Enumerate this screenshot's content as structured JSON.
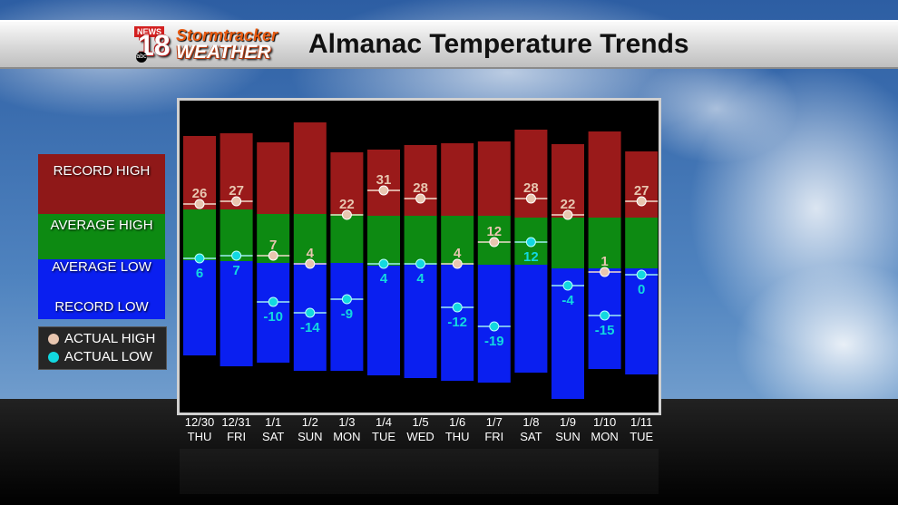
{
  "title": "Almanac Temperature Trends",
  "logo": {
    "news": "NEWS",
    "number": "18",
    "stormtracker": "Stormtracker",
    "weather": "WEATHER",
    "abc": "abc"
  },
  "legend": {
    "record_high": "RECORD HIGH",
    "average_high": "AVERAGE HIGH",
    "average_low": "AVERAGE LOW",
    "record_low": "RECORD LOW",
    "actual_high": "ACTUAL HIGH",
    "actual_low": "ACTUAL LOW"
  },
  "colors": {
    "record_high": "#9a1a1a",
    "average": "#0d8a12",
    "record_low": "#0a1ff0",
    "actual_high": "#e8c6b0",
    "actual_low": "#12d8e0",
    "frame": "#d0d0d0"
  },
  "chart_data": {
    "type": "bar",
    "days": [
      {
        "date": "12/30",
        "dow": "THU",
        "high": 26,
        "low": 6
      },
      {
        "date": "12/31",
        "dow": "FRI",
        "high": 27,
        "low": 7
      },
      {
        "date": "1/1",
        "dow": "SAT",
        "high": 7,
        "low": -10
      },
      {
        "date": "1/2",
        "dow": "SUN",
        "high": 4,
        "low": -14
      },
      {
        "date": "1/3",
        "dow": "MON",
        "high": 22,
        "low": -9
      },
      {
        "date": "1/4",
        "dow": "TUE",
        "high": 31,
        "low": 4
      },
      {
        "date": "1/5",
        "dow": "WED",
        "high": 28,
        "low": 4
      },
      {
        "date": "1/6",
        "dow": "THU",
        "high": 4,
        "low": -12
      },
      {
        "date": "1/7",
        "dow": "FRI",
        "high": 12,
        "low": -19
      },
      {
        "date": "1/8",
        "dow": "SAT",
        "high": 28,
        "low": 12
      },
      {
        "date": "1/9",
        "dow": "SUN",
        "high": 22,
        "low": -4
      },
      {
        "date": "1/10",
        "dow": "MON",
        "high": 1,
        "low": -15
      },
      {
        "date": "1/11",
        "dow": "TUE",
        "high": 27,
        "low": 0
      }
    ],
    "legend_position": "left"
  }
}
